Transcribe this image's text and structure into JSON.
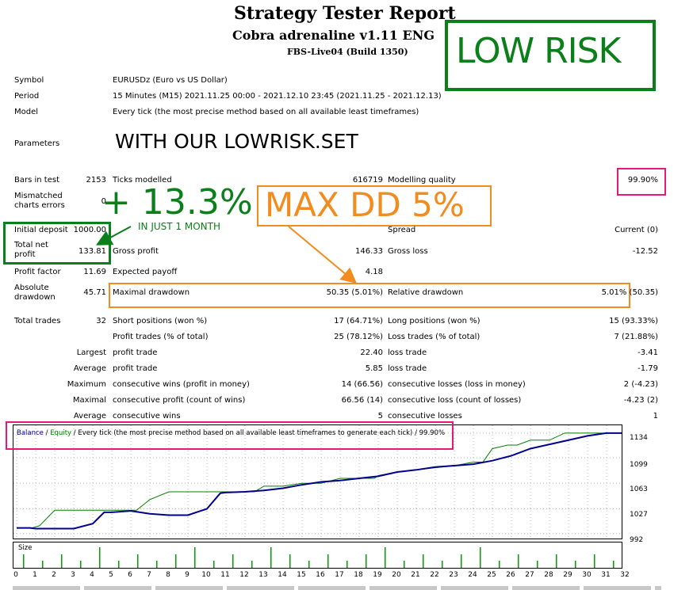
{
  "header": {
    "title": "Strategy Tester Report",
    "subtitle": "Cobra adrenaline v1.11 ENG",
    "server": "FBS-Live04 (Build 1350)"
  },
  "badge_low_risk": "LOW RISK",
  "info": {
    "symbol_label": "Symbol",
    "symbol_value": "EURUSDz (Euro vs US Dollar)",
    "period_label": "Period",
    "period_value": "15 Minutes (M15) 2021.11.25 00:00 - 2021.12.10 23:45 (2021.11.25 - 2021.12.13)",
    "model_label": "Model",
    "model_value": "Every tick (the most precise method based on all available least timeframes)",
    "params_label": "Parameters",
    "params_overlay": "WITH OUR LOWRISK.SET"
  },
  "stats": {
    "bars_label": "Bars in test",
    "bars_value": "2153",
    "ticks_label": "Ticks modelled",
    "ticks_value": "616719",
    "quality_label": "Modelling quality",
    "quality_value": "99.90%",
    "mismatched_label": "Mismatched charts errors",
    "mismatched_value": "0",
    "profit_overlay": "+ 13.3%",
    "profit_overlay_sub": "IN JUST 1 MONTH",
    "maxdd_overlay": "MAX DD 5%",
    "deposit_label": "Initial deposit",
    "deposit_value": "1000.00",
    "spread_label": "Spread",
    "spread_value": "Current (0)",
    "netprofit_label": "Total net profit",
    "netprofit_value": "133.81",
    "grossprofit_label": "Gross profit",
    "grossprofit_value": "146.33",
    "grossloss_label": "Gross loss",
    "grossloss_value": "-12.52",
    "pf_label": "Profit factor",
    "pf_value": "11.69",
    "ep_label": "Expected payoff",
    "ep_value": "4.18",
    "absdd_label": "Absolute drawdown",
    "absdd_value": "45.71",
    "maxdd_label": "Maximal drawdown",
    "maxdd_value": "50.35 (5.01%)",
    "reldd_label": "Relative drawdown",
    "reldd_value": "5.01% (50.35)",
    "trades_label": "Total trades",
    "trades_value": "32",
    "short_label": "Short positions (won %)",
    "short_value": "17 (64.71%)",
    "long_label": "Long positions (won %)",
    "long_value": "15 (93.33%)",
    "pt_label": "Profit trades (% of total)",
    "pt_value": "25 (78.12%)",
    "lt_label": "Loss trades (% of total)",
    "lt_value": "7 (21.88%)",
    "largest_label": "Largest",
    "lpt_label": "profit trade",
    "lpt_value": "22.40",
    "llt_label": "loss trade",
    "llt_value": "-3.41",
    "average_label": "Average",
    "apt_label": "profit trade",
    "apt_value": "5.85",
    "alt_label": "loss trade",
    "alt_value": "-1.79",
    "maximum_label": "Maximum",
    "mcw_label": "consecutive wins (profit in money)",
    "mcw_value": "14 (66.56)",
    "mcl_label": "consecutive losses (loss in money)",
    "mcl_value": "2 (-4.23)",
    "maximal_label": "Maximal",
    "mcp_label": "consecutive profit (count of wins)",
    "mcp_value": "66.56 (14)",
    "mcll_label": "consecutive loss (count of losses)",
    "mcll_value": "-4.23 (2)",
    "average2_label": "Average",
    "acw_label": "consecutive wins",
    "acw_value": "5",
    "acl_label": "consecutive losses",
    "acl_value": "1"
  },
  "legend": {
    "balance": "Balance",
    "sep1": " / ",
    "equity": "Equity",
    "rest": " / Every tick (the most precise method based on all available least timeframes to generate each tick) / 99.90%"
  },
  "size_label": "Size",
  "colors": {
    "balance": "#00008b",
    "equity": "#008000",
    "green_box": "#0a7f1a",
    "orange": "#f28c1e",
    "magenta": "#e6187a"
  },
  "chart_data": {
    "type": "line",
    "x_ticks": [
      "0",
      "1",
      "2",
      "3",
      "4",
      "5",
      "6",
      "7",
      "8",
      "9",
      "10",
      "11",
      "12",
      "13",
      "14",
      "15",
      "16",
      "17",
      "18",
      "19",
      "20",
      "21",
      "22",
      "23",
      "24",
      "25",
      "26",
      "27",
      "28",
      "29",
      "30",
      "31",
      "32"
    ],
    "y_ticks": [
      "1134",
      "1099",
      "1063",
      "1027",
      "992"
    ],
    "ylim": [
      985,
      1145
    ],
    "xlim": [
      0,
      32.5
    ],
    "series": [
      {
        "name": "Balance",
        "x": [
          0,
          0.7,
          1,
          2.5,
          3,
          4,
          4.6,
          5,
          6,
          7,
          8,
          9,
          10,
          10.7,
          11,
          12,
          13,
          14,
          15,
          16,
          17,
          18,
          19,
          20,
          21,
          22,
          23,
          24,
          25,
          26,
          27,
          28,
          29,
          30,
          31,
          32
        ],
        "y": [
          1000,
          1000,
          999,
          999,
          999,
          1006,
          1022,
          1022,
          1024,
          1020,
          1018,
          1018,
          1027,
          1049,
          1050,
          1051,
          1053,
          1056,
          1061,
          1065,
          1067,
          1070,
          1073,
          1079,
          1082,
          1086,
          1088,
          1090,
          1095,
          1102,
          1112,
          1118,
          1124,
          1130,
          1134,
          1134
        ]
      },
      {
        "name": "Equity",
        "x": [
          0,
          0.8,
          1.2,
          2,
          2.5,
          3,
          4,
          4.4,
          5,
          5.8,
          6.3,
          7,
          8,
          9,
          10,
          11,
          12,
          12.5,
          13,
          14,
          15,
          16,
          17,
          18,
          18.8,
          19,
          20,
          21,
          22,
          23,
          24,
          24.5,
          25,
          25.8,
          26.3,
          27,
          28,
          28.8,
          29,
          30,
          31,
          32
        ],
        "y": [
          1000,
          1000,
          1003,
          1025,
          1025,
          1025,
          1025,
          1025,
          1025,
          1025,
          1025,
          1040,
          1051,
          1051,
          1051,
          1051,
          1051,
          1051,
          1059,
          1059,
          1063,
          1063,
          1070,
          1070,
          1070,
          1074,
          1079,
          1082,
          1085,
          1088,
          1093,
          1093,
          1112,
          1117,
          1117,
          1124,
          1124,
          1134,
          1134,
          1134,
          1134,
          1134
        ]
      }
    ],
    "size_bars": [
      2,
      1,
      2,
      1,
      3,
      1,
      2,
      1,
      2,
      3,
      1,
      2,
      1,
      3,
      2,
      1,
      2,
      1,
      2,
      3,
      1,
      2,
      1,
      2,
      3,
      1,
      2,
      1,
      2,
      1,
      2,
      1,
      1
    ]
  }
}
